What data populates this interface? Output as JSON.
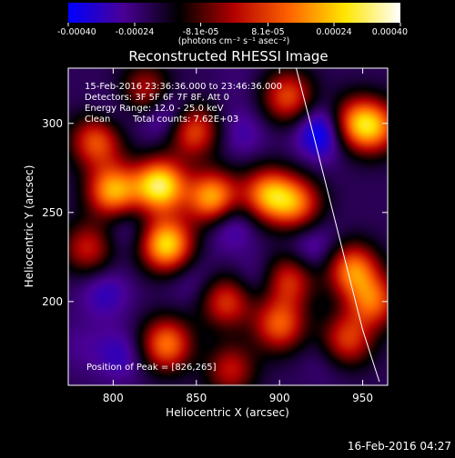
{
  "chart_data": {
    "type": "heatmap",
    "title": "Reconstructed RHESSI Image",
    "xlabel": "Heliocentric X (arcsec)",
    "ylabel": "Heliocentric Y (arcsec)",
    "xlim": [
      773,
      965
    ],
    "ylim": [
      153,
      331
    ],
    "xticks": [
      800,
      850,
      900,
      950
    ],
    "yticks": [
      200,
      250,
      300
    ],
    "colorbar": {
      "tick_labels": [
        "-0.00040",
        "-0.00024",
        "-8.1e-05",
        "8.1e-05",
        "0.00024",
        "0.00040"
      ],
      "tick_values": [
        -0.0004,
        -0.00024,
        -8.1e-05,
        8.1e-05,
        0.00024,
        0.0004
      ],
      "range": [
        -0.0004,
        0.0004
      ],
      "units_label": "(photons cm⁻² s⁻¹ asec⁻²)",
      "colors": [
        "#0000ff",
        "#4a0096",
        "#000000",
        "#b40000",
        "#ff6400",
        "#ffe600",
        "#ffffff"
      ]
    },
    "annotations": [
      "15-Feb-2016 23:36:36.000 to 23:46:36.000",
      "Detectors: 3F 5F 6F 7F 8F, Att 0",
      "Energy Range: 12.0 - 25.0 keV",
      "Clean",
      "Total counts: 7.62E+03"
    ],
    "peak_label": "Position of Peak = [826,265]",
    "peak_position": [
      826,
      265
    ],
    "grid": false,
    "limb_curve": {
      "x": [
        910,
        920,
        930,
        940,
        950,
        960
      ],
      "y": [
        331,
        295,
        258,
        221,
        184,
        155
      ]
    },
    "sources": [
      {
        "x": 828,
        "y": 265,
        "value": 0.0004
      },
      {
        "x": 800,
        "y": 262,
        "value": 0.0003
      },
      {
        "x": 860,
        "y": 258,
        "value": 0.00032
      },
      {
        "x": 893,
        "y": 260,
        "value": 0.00026
      },
      {
        "x": 910,
        "y": 255,
        "value": 0.0002
      },
      {
        "x": 832,
        "y": 232,
        "value": 0.00036
      },
      {
        "x": 790,
        "y": 290,
        "value": 0.0002
      },
      {
        "x": 848,
        "y": 296,
        "value": 0.0002
      },
      {
        "x": 905,
        "y": 315,
        "value": 0.00018
      },
      {
        "x": 945,
        "y": 300,
        "value": 0.0002
      },
      {
        "x": 958,
        "y": 298,
        "value": 0.00018
      },
      {
        "x": 944,
        "y": 218,
        "value": 0.00024
      },
      {
        "x": 956,
        "y": 200,
        "value": 0.0002
      },
      {
        "x": 905,
        "y": 212,
        "value": 0.00016
      },
      {
        "x": 832,
        "y": 176,
        "value": 0.00024
      },
      {
        "x": 868,
        "y": 200,
        "value": 0.00016
      },
      {
        "x": 900,
        "y": 187,
        "value": 0.0002
      },
      {
        "x": 940,
        "y": 178,
        "value": 0.00018
      },
      {
        "x": 870,
        "y": 162,
        "value": 0.00012
      },
      {
        "x": 820,
        "y": 318,
        "value": 0.00012
      },
      {
        "x": 785,
        "y": 230,
        "value": 0.00012
      },
      {
        "x": 926,
        "y": 295,
        "value": -0.00034
      },
      {
        "x": 832,
        "y": 305,
        "value": -0.00028
      },
      {
        "x": 800,
        "y": 305,
        "value": -0.00018
      },
      {
        "x": 877,
        "y": 295,
        "value": -0.0002
      },
      {
        "x": 870,
        "y": 245,
        "value": -0.00026
      },
      {
        "x": 808,
        "y": 242,
        "value": -0.0002
      },
      {
        "x": 920,
        "y": 230,
        "value": -0.00022
      },
      {
        "x": 888,
        "y": 212,
        "value": -0.0002
      },
      {
        "x": 848,
        "y": 212,
        "value": -0.00018
      },
      {
        "x": 795,
        "y": 205,
        "value": -0.00022
      },
      {
        "x": 805,
        "y": 170,
        "value": -0.00022
      },
      {
        "x": 858,
        "y": 166,
        "value": -0.00014
      },
      {
        "x": 930,
        "y": 170,
        "value": -0.00018
      },
      {
        "x": 780,
        "y": 175,
        "value": -0.00016
      },
      {
        "x": 875,
        "y": 325,
        "value": -0.00014
      }
    ]
  },
  "footer": {
    "timestamp": "16-Feb-2016 04:27"
  }
}
